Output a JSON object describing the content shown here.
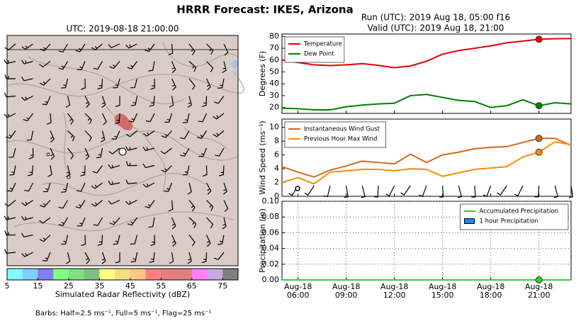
{
  "title": "HRRR Forecast: IKES, Arizona",
  "chart_data": [
    {
      "type": "map",
      "title": "UTC: 2019-08-18 21:00:00",
      "colorbar": {
        "label": "Simulated Radar Reflectivity (dBZ)",
        "lim": [
          5,
          80
        ],
        "ticks": [
          5,
          15,
          25,
          35,
          45,
          55,
          65,
          75
        ],
        "colors": [
          "#7fffff",
          "#7fcfff",
          "#7f7fef",
          "#7fff7f",
          "#7fdf7f",
          "#7fbf7f",
          "#ffff7f",
          "#f7df7f",
          "#ffc77f",
          "#ff7f7f",
          "#e77f7f",
          "#df7f7f",
          "#ff7fff",
          "#c7a7df",
          "#7f7f7f"
        ]
      },
      "note": "Barbs: Half=2.5 ms⁻¹, Full=5 ms⁻¹, Flag=25 ms⁻¹"
    },
    {
      "type": "line",
      "title": "Run (UTC): 2019 Aug 18, 05:00 f16",
      "subtitle": "Valid (UTC): 2019 Aug 18, 21:00",
      "ylabel": "Degrees (F)",
      "legend": "upper left",
      "grid": false,
      "highlight_x": "2019-08-18 21:00",
      "x": [
        "2019-08-18 05:00",
        "2019-08-18 06:00",
        "2019-08-18 07:00",
        "2019-08-18 08:00",
        "2019-08-18 09:00",
        "2019-08-18 10:00",
        "2019-08-18 11:00",
        "2019-08-18 12:00",
        "2019-08-18 13:00",
        "2019-08-18 14:00",
        "2019-08-18 15:00",
        "2019-08-18 16:00",
        "2019-08-18 17:00",
        "2019-08-18 18:00",
        "2019-08-18 19:00",
        "2019-08-18 20:00",
        "2019-08-18 21:00",
        "2019-08-18 22:00",
        "2019-08-18 23:00"
      ],
      "xlim": [
        "2019-08-18 05:00",
        "2019-08-18 23:00"
      ],
      "ylim": [
        15,
        82
      ],
      "yticks": [
        20,
        30,
        40,
        50,
        60,
        70,
        80
      ],
      "series": [
        {
          "name": "Temperature",
          "color": "#e60000",
          "values": [
            60,
            58,
            56,
            55.4,
            56,
            57,
            55.5,
            53.6,
            55,
            59,
            65,
            68,
            70,
            72,
            74.6,
            76,
            77.6,
            78,
            78.2
          ]
        },
        {
          "name": "Dew Point",
          "color": "#008000",
          "values": [
            19.4,
            19,
            18,
            18,
            20.6,
            22,
            23,
            23.6,
            30,
            31,
            28.5,
            26,
            25,
            20,
            21.5,
            26.5,
            21.5,
            24,
            23
          ]
        }
      ]
    },
    {
      "type": "line",
      "ylabel": "Wind Speed (ms⁻¹)",
      "legend": "upper left",
      "grid": false,
      "highlight_x": "2019-08-18 21:00",
      "x": [
        "2019-08-18 05:00",
        "2019-08-18 06:00",
        "2019-08-18 07:00",
        "2019-08-18 08:00",
        "2019-08-18 09:00",
        "2019-08-18 10:00",
        "2019-08-18 11:00",
        "2019-08-18 12:00",
        "2019-08-18 13:00",
        "2019-08-18 14:00",
        "2019-08-18 15:00",
        "2019-08-18 16:00",
        "2019-08-18 17:00",
        "2019-08-18 18:00",
        "2019-08-18 19:00",
        "2019-08-18 20:00",
        "2019-08-18 21:00",
        "2019-08-18 22:00",
        "2019-08-18 23:00"
      ],
      "xlim": [
        "2019-08-18 05:00",
        "2019-08-18 23:00"
      ],
      "ylim": [
        0,
        11.2
      ],
      "yticks": [
        0,
        2,
        4,
        6,
        8,
        10
      ],
      "series": [
        {
          "name": "Instantaneous Wind Gust",
          "color": "#d2691e",
          "values": [
            4.3,
            3.5,
            2.8,
            3.8,
            4.4,
            5.1,
            4.9,
            4.7,
            6.1,
            4.9,
            6.0,
            6.4,
            6.9,
            7.1,
            7.2,
            7.8,
            8.4,
            8.4,
            7.4
          ]
        },
        {
          "name": "Previous Hour Max Wind",
          "color": "#ff8c00",
          "values": [
            2.0,
            2.7,
            1.8,
            3.5,
            3.7,
            3.9,
            3.9,
            3.7,
            4.0,
            3.9,
            2.9,
            3.4,
            3.9,
            4.1,
            4.3,
            5.7,
            6.4,
            7.9,
            7.5
          ]
        }
      ]
    },
    {
      "type": "line",
      "ylabel": "Precipitation (in)",
      "legend": "upper right",
      "grid": true,
      "highlight_x": "2019-08-18 21:00",
      "x": [
        "2019-08-18 05:00",
        "2019-08-18 06:00",
        "2019-08-18 07:00",
        "2019-08-18 08:00",
        "2019-08-18 09:00",
        "2019-08-18 10:00",
        "2019-08-18 11:00",
        "2019-08-18 12:00",
        "2019-08-18 13:00",
        "2019-08-18 14:00",
        "2019-08-18 15:00",
        "2019-08-18 16:00",
        "2019-08-18 17:00",
        "2019-08-18 18:00",
        "2019-08-18 19:00",
        "2019-08-18 20:00",
        "2019-08-18 21:00",
        "2019-08-18 22:00",
        "2019-08-18 23:00"
      ],
      "xlim": [
        "2019-08-18 05:00",
        "2019-08-18 23:00"
      ],
      "xticks": [
        {
          "value": "2019-08-18 06:00",
          "label": "Aug-18 06:00"
        },
        {
          "value": "2019-08-18 09:00",
          "label": "Aug-18 09:00"
        },
        {
          "value": "2019-08-18 12:00",
          "label": "Aug-18 12:00"
        },
        {
          "value": "2019-08-18 15:00",
          "label": "Aug-18 15:00"
        },
        {
          "value": "2019-08-18 18:00",
          "label": "Aug-18 18:00"
        },
        {
          "value": "2019-08-18 21:00",
          "label": "Aug-18 21:00"
        }
      ],
      "ylim": [
        0,
        0.1
      ],
      "yticks": [
        {
          "value": 0,
          "label": "0.00"
        },
        {
          "value": 0.02,
          "label": "0.02"
        },
        {
          "value": 0.04,
          "label": "0.04"
        },
        {
          "value": 0.06,
          "label": "0.06"
        },
        {
          "value": 0.08,
          "label": "0.08"
        },
        {
          "value": 0.1,
          "label": "0.10"
        }
      ],
      "series": [
        {
          "name": "Accumulated Precipitation",
          "color": "#33cc33",
          "values": [
            0,
            0,
            0,
            0,
            0,
            0,
            0,
            0,
            0,
            0,
            0,
            0,
            0,
            0,
            0,
            0,
            0,
            0,
            0
          ]
        },
        {
          "name": "1 hour Precipitation",
          "color": "#1e88e5",
          "style": "bar",
          "values": [
            0,
            0,
            0,
            0,
            0,
            0,
            0,
            0,
            0,
            0,
            0,
            0,
            0,
            0,
            0,
            0,
            0,
            0,
            0
          ]
        }
      ]
    }
  ]
}
